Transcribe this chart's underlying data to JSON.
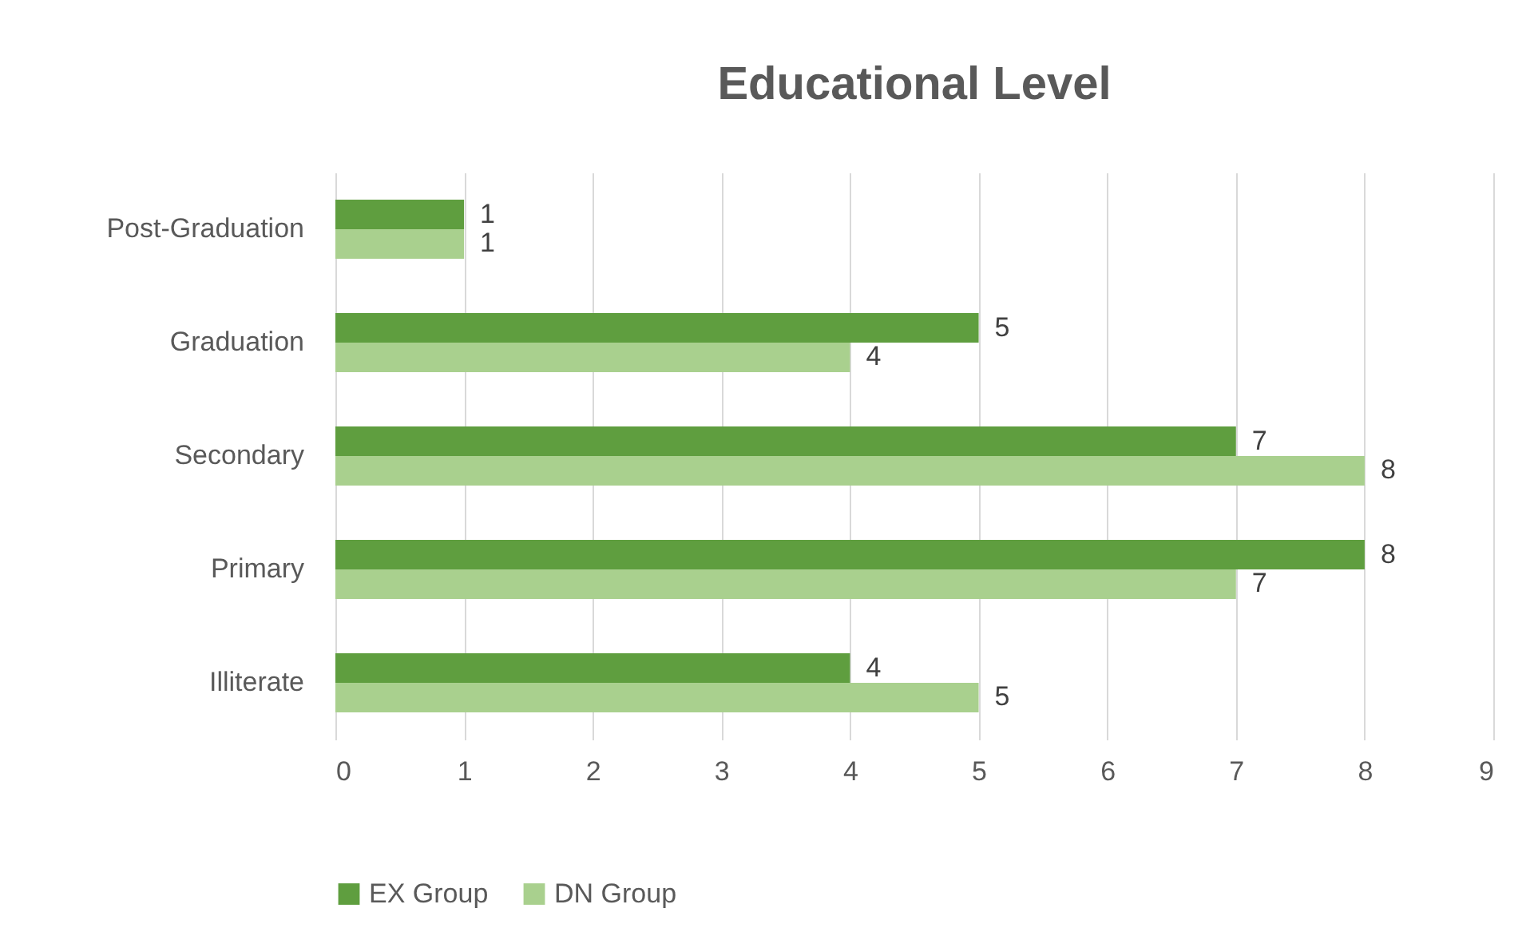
{
  "chart_data": {
    "type": "bar",
    "orientation": "horizontal",
    "title": "Educational Level",
    "categories": [
      "Post-Graduation",
      "Graduation",
      "Secondary",
      "Primary",
      "Illiterate"
    ],
    "series": [
      {
        "name": "EX Group",
        "color": "#5f9e3f",
        "values": [
          1,
          5,
          7,
          8,
          4
        ]
      },
      {
        "name": "DN Group",
        "color": "#a9d08e",
        "values": [
          1,
          4,
          8,
          7,
          5
        ]
      }
    ],
    "xlim": [
      0,
      9
    ],
    "xticks": [
      0,
      1,
      2,
      3,
      4,
      5,
      6,
      7,
      8,
      9
    ],
    "grid": "x",
    "legend": "bottom",
    "data_labels": true
  }
}
